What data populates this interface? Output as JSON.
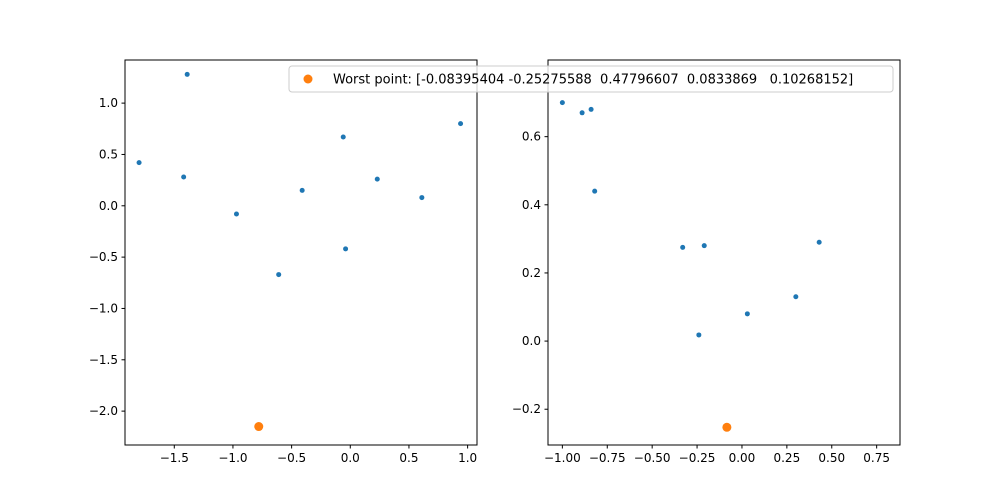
{
  "chart_data": [
    {
      "type": "scatter",
      "title": "",
      "xlabel": "",
      "ylabel": "",
      "xlim": [
        -1.92,
        1.08
      ],
      "ylim": [
        -2.33,
        1.42
      ],
      "xticks": [
        -1.5,
        -1.0,
        -0.5,
        0.0,
        0.5,
        1.0
      ],
      "xtick_labels": [
        "−1.5",
        "−1.0",
        "−0.5",
        "0.0",
        "0.5",
        "1.0"
      ],
      "yticks": [
        -2.0,
        -1.5,
        -1.0,
        -0.5,
        0.0,
        0.5,
        1.0
      ],
      "ytick_labels": [
        "−2.0",
        "−1.5",
        "−1.0",
        "−0.5",
        "0.0",
        "0.5",
        "1.0"
      ],
      "grid": false,
      "series": [
        {
          "color": "#1f77b4",
          "points": [
            {
              "x": -1.39,
              "y": 1.28
            },
            {
              "x": -1.8,
              "y": 0.42
            },
            {
              "x": -1.42,
              "y": 0.28
            },
            {
              "x": -0.97,
              "y": -0.08
            },
            {
              "x": -0.61,
              "y": -0.67
            },
            {
              "x": -0.41,
              "y": 0.15
            },
            {
              "x": -0.06,
              "y": 0.67
            },
            {
              "x": -0.04,
              "y": -0.42
            },
            {
              "x": 0.23,
              "y": 0.26
            },
            {
              "x": 0.61,
              "y": 0.08
            },
            {
              "x": 0.94,
              "y": 0.8
            }
          ]
        },
        {
          "name": "Worst point: [-0.08395404 -0.25275588  0.47796607  0.0833869   0.10268152]",
          "color": "#ff7f0e",
          "points": [
            {
              "x": -0.78,
              "y": -2.15
            }
          ]
        }
      ]
    },
    {
      "type": "scatter",
      "title": "",
      "xlabel": "",
      "ylabel": "",
      "xlim": [
        -1.08,
        0.88
      ],
      "ylim": [
        -0.305,
        0.825
      ],
      "xticks": [
        -1.0,
        -0.75,
        -0.5,
        -0.25,
        0.0,
        0.25,
        0.5,
        0.75
      ],
      "xtick_labels": [
        "−1.00",
        "−0.75",
        "−0.50",
        "−0.25",
        "0.00",
        "0.25",
        "0.50",
        "0.75"
      ],
      "yticks": [
        -0.2,
        0.0,
        0.2,
        0.4,
        0.6
      ],
      "ytick_labels": [
        "−0.2",
        "0.0",
        "0.2",
        "0.4",
        "0.6"
      ],
      "grid": false,
      "series": [
        {
          "color": "#1f77b4",
          "points": [
            {
              "x": -1.0,
              "y": 0.7
            },
            {
              "x": -0.89,
              "y": 0.67
            },
            {
              "x": -0.84,
              "y": 0.68
            },
            {
              "x": -0.82,
              "y": 0.44
            },
            {
              "x": -0.33,
              "y": 0.275
            },
            {
              "x": -0.21,
              "y": 0.28
            },
            {
              "x": -0.24,
              "y": 0.018
            },
            {
              "x": 0.03,
              "y": 0.08
            },
            {
              "x": 0.3,
              "y": 0.13
            },
            {
              "x": 0.43,
              "y": 0.29
            }
          ]
        },
        {
          "color": "#ff7f0e",
          "points": [
            {
              "x": -0.084,
              "y": -0.253
            }
          ]
        }
      ]
    }
  ],
  "legend": {
    "label": "Worst point: [-0.08395404 -0.25275588  0.47796607  0.0833869   0.10268152]",
    "marker_color": "#ff7f0e",
    "placement": "top, spanning both subplots"
  }
}
